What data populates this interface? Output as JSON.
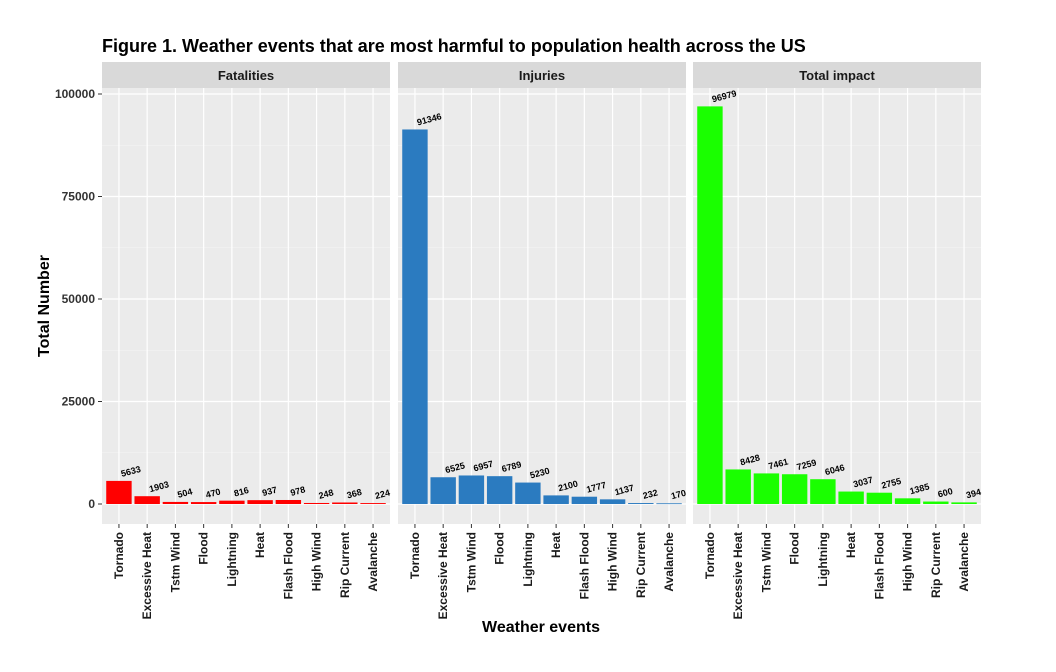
{
  "chart_data": {
    "type": "bar",
    "title": "Figure 1. Weather events that are most harmful to population health across the US",
    "xlabel": "Weather events",
    "ylabel": "Total Number",
    "ylim": [
      0,
      100000
    ],
    "yticks": [
      0,
      25000,
      50000,
      75000,
      100000
    ],
    "grid": true,
    "categories": [
      "Tornado",
      "Excessive Heat",
      "Tstm Wind",
      "Flood",
      "Lightning",
      "Heat",
      "Flash Flood",
      "High Wind",
      "Rip Current",
      "Avalanche"
    ],
    "panels": [
      {
        "name": "Fatalities",
        "color": "#ff0000",
        "values": [
          5633,
          1903,
          504,
          470,
          816,
          937,
          978,
          248,
          368,
          224
        ]
      },
      {
        "name": "Injuries",
        "color": "#2b7bc0",
        "values": [
          91346,
          6525,
          6957,
          6789,
          5230,
          2100,
          1777,
          1137,
          232,
          170
        ]
      },
      {
        "name": "Total impact",
        "color": "#1aff00",
        "values": [
          96979,
          8428,
          7461,
          7259,
          6046,
          3037,
          2755,
          1385,
          600,
          394
        ]
      }
    ]
  }
}
